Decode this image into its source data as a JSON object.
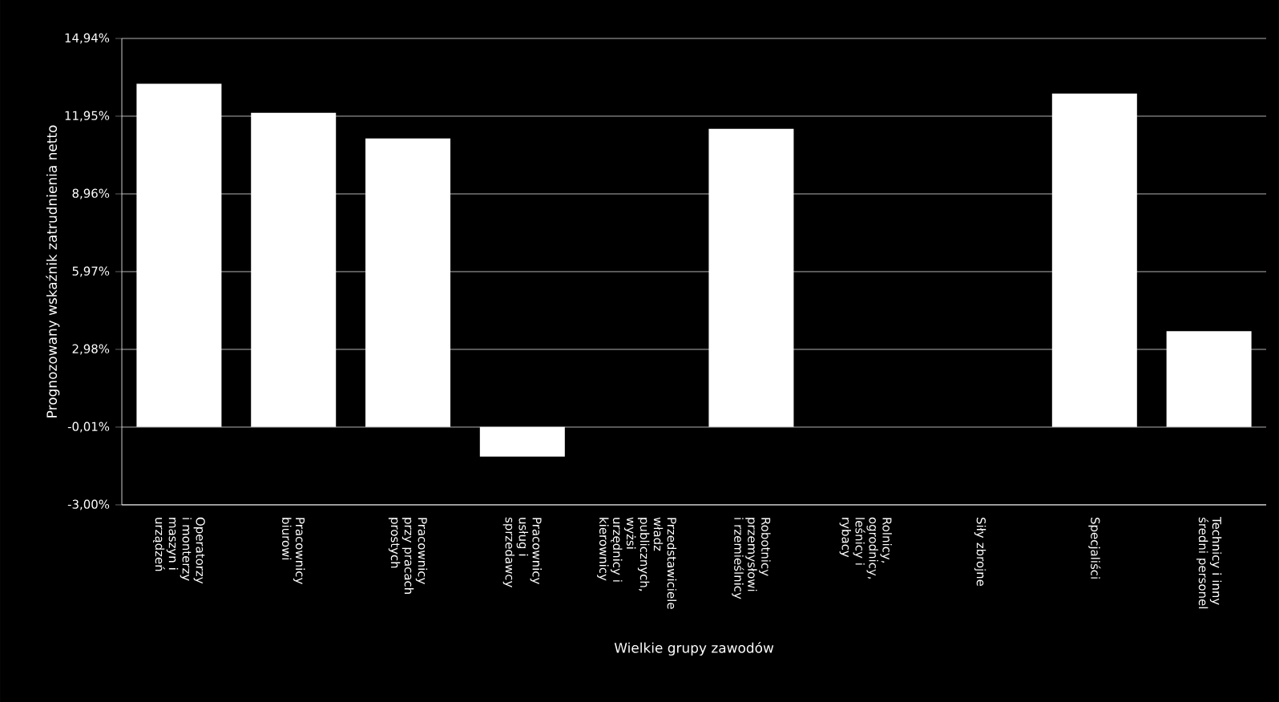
{
  "chart_data": {
    "type": "bar",
    "xlabel": "Wielkie grupy zawodów",
    "ylabel": "Prognozowany wskaźnik zatrudnienia netto",
    "categories": [
      "Operatorzy i monterzy maszyn i urządzeń",
      "Pracownicy biurowi",
      "Pracownicy przy pracach prostych",
      "Pracownicy usług i sprzedawcy",
      "Przedstawiciele władz publicznych, wyżsi urzędnicy i kierownicy",
      "Robotnicy przemysłowi i rzemieślnicy",
      "Rolnicy, ogrodnicy, leśnicy i rybacy",
      "Siły zbrojne",
      "Specjaliści",
      "Technicy i inny średni personel"
    ],
    "values": [
      13.2,
      12.08,
      11.09,
      -1.14,
      0,
      11.46,
      0,
      0,
      12.82,
      3.68
    ],
    "color": "#ffffff",
    "ylim": [
      -3.0,
      14.94
    ],
    "yticks": [
      {
        "value": -3.0,
        "label": "-3,00%"
      },
      {
        "value": -0.01,
        "label": "-0,01%"
      },
      {
        "value": 2.98,
        "label": "2,98%"
      },
      {
        "value": 5.97,
        "label": "5,97%"
      },
      {
        "value": 8.96,
        "label": "8,96%"
      },
      {
        "value": 11.95,
        "label": "11,95%"
      },
      {
        "value": 14.94,
        "label": "14,94%"
      }
    ],
    "grid": "y"
  }
}
